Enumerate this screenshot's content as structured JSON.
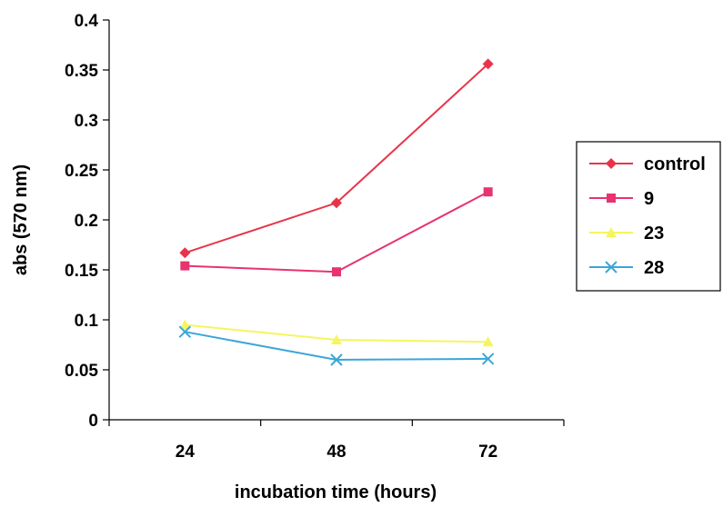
{
  "chart_data": {
    "type": "line",
    "title": "",
    "xlabel": "incubation time (hours)",
    "ylabel": "abs (570 nm)",
    "categories": [
      "24",
      "48",
      "72"
    ],
    "ylim": [
      0,
      0.4
    ],
    "yticks": [
      "0",
      "0.05",
      "0.1",
      "0.15",
      "0.2",
      "0.25",
      "0.3",
      "0.35",
      "0.4"
    ],
    "grid": false,
    "legend_position": "right",
    "series": [
      {
        "name": "control",
        "values": [
          0.167,
          0.217,
          0.356
        ],
        "color": "#e8344a",
        "marker": "diamond"
      },
      {
        "name": "9",
        "values": [
          0.154,
          0.148,
          0.228
        ],
        "color": "#e8336e",
        "marker": "square"
      },
      {
        "name": "23",
        "values": [
          0.095,
          0.08,
          0.078
        ],
        "color": "#f5f560",
        "marker": "triangle"
      },
      {
        "name": "28",
        "values": [
          0.088,
          0.06,
          0.061
        ],
        "color": "#3aa6d8",
        "marker": "x"
      }
    ]
  }
}
